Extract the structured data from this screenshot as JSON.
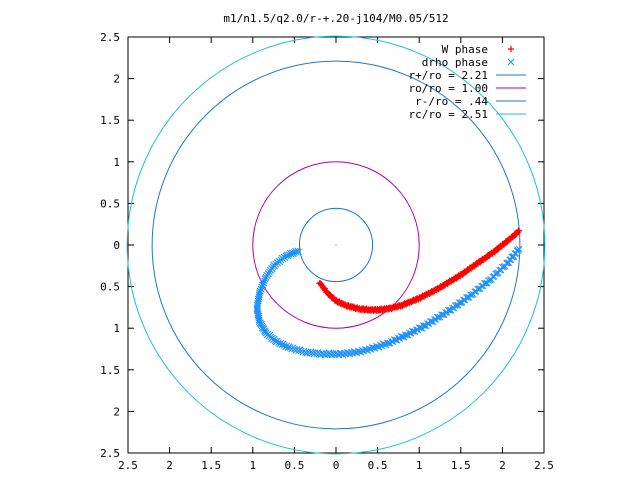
{
  "chart_data": {
    "type": "scatter",
    "title": "m1/n1.5/q2.0/r-+.20-j104/M0.05/512",
    "xlabel": "",
    "ylabel": "",
    "xlim": [
      -2.5,
      2.5
    ],
    "ylim": [
      -2.5,
      2.5
    ],
    "x_ticks": [
      -2.5,
      -2,
      -1.5,
      -1,
      -0.5,
      0,
      0.5,
      1,
      1.5,
      2,
      2.5
    ],
    "x_tick_labels": [
      "2.5",
      "2",
      "1.5",
      "1",
      "0.5",
      "0",
      "0.5",
      "1",
      "1.5",
      "2",
      "2.5"
    ],
    "y_ticks": [
      2.5,
      2,
      1.5,
      1,
      0.5,
      0,
      -0.5,
      -1,
      -1.5,
      -2,
      -2.5
    ],
    "y_tick_labels": [
      "2.5",
      "2",
      "1.5",
      "1",
      "0.5",
      "0",
      "0.5",
      "1",
      "1.5",
      "2",
      "2.5"
    ],
    "grid": false,
    "legend_position": "top-right",
    "series": [
      {
        "name": "W phase",
        "kind": "points",
        "marker": "+",
        "color": "#ff0000",
        "x": [
          -0.2,
          -0.1,
          0.0,
          0.1,
          0.2,
          0.3,
          0.4,
          0.5,
          0.6,
          0.7,
          0.8,
          0.9,
          1.0,
          1.1,
          1.2,
          1.3,
          1.4,
          1.5,
          1.6,
          1.7,
          1.8,
          1.9,
          2.0,
          2.1,
          2.2
        ],
        "y": [
          -0.45,
          -0.58,
          -0.67,
          -0.72,
          -0.75,
          -0.77,
          -0.78,
          -0.78,
          -0.77,
          -0.75,
          -0.72,
          -0.68,
          -0.64,
          -0.59,
          -0.54,
          -0.48,
          -0.42,
          -0.36,
          -0.29,
          -0.22,
          -0.15,
          -0.08,
          0.0,
          0.08,
          0.17
        ]
      },
      {
        "name": "drho phase",
        "kind": "points",
        "marker": "x",
        "color": "#1e90ff",
        "x": [
          -0.45,
          -0.6,
          -0.75,
          -0.85,
          -0.92,
          -0.95,
          -0.92,
          -0.85,
          -0.72,
          -0.55,
          -0.35,
          -0.15,
          0.05,
          0.25,
          0.45,
          0.65,
          0.85,
          1.05,
          1.25,
          1.45,
          1.65,
          1.85,
          2.05,
          2.2
        ],
        "y": [
          -0.07,
          -0.13,
          -0.25,
          -0.4,
          -0.58,
          -0.76,
          -0.92,
          -1.05,
          -1.16,
          -1.24,
          -1.29,
          -1.31,
          -1.31,
          -1.29,
          -1.24,
          -1.17,
          -1.08,
          -0.98,
          -0.86,
          -0.73,
          -0.58,
          -0.42,
          -0.23,
          -0.05
        ]
      },
      {
        "name": "r+/ro = 2.21",
        "kind": "circle",
        "radius": 2.21,
        "color": "#1e78c8"
      },
      {
        "name": "ro/ro = 1.00",
        "kind": "circle",
        "radius": 1.0,
        "color": "#b000b0"
      },
      {
        "name": "r-/ro = .44",
        "kind": "circle",
        "radius": 0.44,
        "color": "#1e78c8"
      },
      {
        "name": "rc/ro = 2.51",
        "kind": "circle",
        "radius": 2.51,
        "color": "#20c0d0"
      }
    ]
  }
}
